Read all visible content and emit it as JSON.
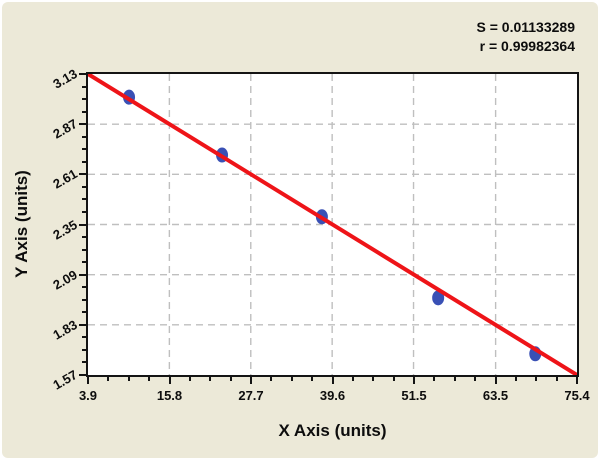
{
  "chart_data": {
    "type": "scatter",
    "title": "",
    "xlabel": "X Axis (units)",
    "ylabel": "Y Axis (units)",
    "annotations": [
      "S = 0.01133289",
      "r = 0.99982364"
    ],
    "x_ticks": [
      3.9,
      15.8,
      27.7,
      39.6,
      51.5,
      63.5,
      75.4
    ],
    "y_ticks": [
      1.57,
      1.83,
      2.09,
      2.35,
      2.61,
      2.87,
      3.13
    ],
    "xlim": [
      3.9,
      75.4
    ],
    "ylim": [
      1.57,
      3.13
    ],
    "minor_ticks_between_majors": 3,
    "grid": "dashed-major",
    "legend": "none",
    "series": [
      {
        "name": "data-points",
        "type": "scatter",
        "x": [
          9.9,
          23.5,
          38.1,
          55.1,
          69.3
        ],
        "y": [
          3.01,
          2.71,
          2.39,
          1.97,
          1.68
        ]
      },
      {
        "name": "fit-line",
        "type": "line",
        "x": [
          3.9,
          75.4
        ],
        "y": [
          3.13,
          1.57
        ]
      }
    ],
    "colors": {
      "background": "#ece9d8",
      "plot_background": "#ffffff",
      "frame": "#141414",
      "grid": "#bfbfbf",
      "point": "#3950b5",
      "fit_line": "#ee1418",
      "text": "#0d0d0d"
    }
  }
}
